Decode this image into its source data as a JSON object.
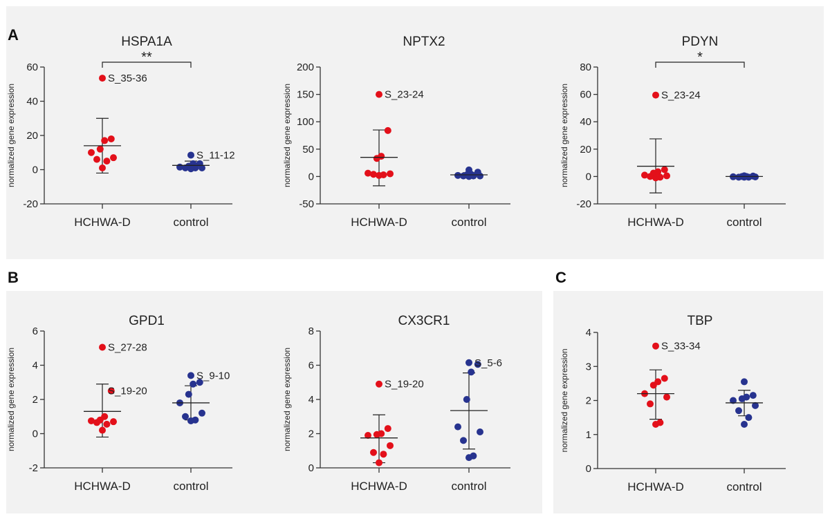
{
  "figure": {
    "panel_labels": [
      "A",
      "B",
      "C"
    ],
    "colors": {
      "hchwa": "#e3101a",
      "control": "#27338f",
      "axis": "#333333",
      "panel_bg": "#f2f2f2"
    }
  },
  "chart_data": [
    {
      "id": "hspa1a",
      "type": "scatter",
      "title": "HSPA1A",
      "panel": "A",
      "ylabel": "normalized gene expression",
      "ylim": [
        -20,
        60
      ],
      "yticks": [
        -20,
        0,
        20,
        40,
        60
      ],
      "categories": [
        "HCHWA-D",
        "control"
      ],
      "series": [
        {
          "name": "HCHWA-D",
          "values": [
            53.5,
            18,
            17,
            12,
            10,
            7,
            6,
            5,
            1
          ],
          "mean": 14,
          "sd_upper": 30,
          "sd_lower": -2
        },
        {
          "name": "control",
          "values": [
            8.5,
            3.5,
            3.5,
            2,
            1.5,
            1,
            1,
            1,
            0.5
          ],
          "mean": 2.5,
          "sd_upper": 5,
          "sd_lower": 0
        }
      ],
      "significance": "**",
      "annotations": [
        {
          "text": "S_35-36",
          "series": 0,
          "point": 0
        },
        {
          "text": "S_11-12",
          "series": 1,
          "point": 0
        }
      ]
    },
    {
      "id": "nptx2",
      "type": "scatter",
      "title": "NPTX2",
      "panel": "A",
      "ylabel": "normalized gene expression",
      "ylim": [
        -50,
        200
      ],
      "yticks": [
        -50,
        0,
        50,
        100,
        150,
        200
      ],
      "categories": [
        "HCHWA-D",
        "control"
      ],
      "series": [
        {
          "name": "HCHWA-D",
          "values": [
            150,
            84,
            37,
            33,
            6,
            5,
            4,
            3,
            2
          ],
          "mean": 35,
          "sd_upper": 85,
          "sd_lower": -17
        },
        {
          "name": "control",
          "values": [
            12,
            8,
            4,
            3,
            2,
            1,
            1,
            1,
            0
          ],
          "mean": 3,
          "sd_upper": 7,
          "sd_lower": -1
        }
      ],
      "significance": "",
      "annotations": [
        {
          "text": "S_23-24",
          "series": 0,
          "point": 0
        }
      ]
    },
    {
      "id": "pdyn",
      "type": "scatter",
      "title": "PDYN",
      "panel": "A",
      "ylabel": "normalized gene expression",
      "ylim": [
        -20,
        80
      ],
      "yticks": [
        -20,
        0,
        20,
        40,
        60,
        80
      ],
      "categories": [
        "HCHWA-D",
        "control"
      ],
      "series": [
        {
          "name": "HCHWA-D",
          "values": [
            59.5,
            5,
            3.5,
            2.5,
            1,
            0.5,
            0,
            -0.5,
            -1
          ],
          "mean": 7.5,
          "sd_upper": 27.5,
          "sd_lower": -12
        },
        {
          "name": "control",
          "values": [
            0.5,
            0.3,
            0,
            0,
            -0.2,
            -0.3,
            -0.5,
            -0.5,
            -0.5
          ],
          "mean": 0,
          "sd_upper": 0.5,
          "sd_lower": -0.5
        }
      ],
      "significance": "*",
      "annotations": [
        {
          "text": "S_23-24",
          "series": 0,
          "point": 0
        }
      ]
    },
    {
      "id": "gpd1",
      "type": "scatter",
      "title": "GPD1",
      "panel": "B",
      "ylabel": "normalized gene expression",
      "ylim": [
        -2,
        6
      ],
      "yticks": [
        -2,
        0,
        2,
        4,
        6
      ],
      "categories": [
        "HCHWA-D",
        "control"
      ],
      "series": [
        {
          "name": "HCHWA-D",
          "values": [
            5.05,
            2.5,
            1,
            0.8,
            0.75,
            0.7,
            0.65,
            0.55,
            0.2
          ],
          "mean": 1.3,
          "sd_upper": 2.9,
          "sd_lower": -0.2
        },
        {
          "name": "control",
          "values": [
            3.4,
            3,
            2.9,
            2.3,
            1.8,
            1.2,
            1,
            0.8,
            0.75
          ],
          "mean": 1.8,
          "sd_upper": 2.8,
          "sd_lower": 0.8
        }
      ],
      "significance": "",
      "annotations": [
        {
          "text": "S_27-28",
          "series": 0,
          "point": 0
        },
        {
          "text": "S_19-20",
          "series": 0,
          "point": 1
        },
        {
          "text": "S_9-10",
          "series": 1,
          "point": 0
        }
      ]
    },
    {
      "id": "cx3cr1",
      "type": "scatter",
      "title": "CX3CR1",
      "panel": "B",
      "ylabel": "normalized gene expression",
      "ylim": [
        0,
        8
      ],
      "yticks": [
        0,
        2,
        4,
        6,
        8
      ],
      "categories": [
        "HCHWA-D",
        "control"
      ],
      "series": [
        {
          "name": "HCHWA-D",
          "values": [
            4.9,
            2.3,
            2,
            1.95,
            1.9,
            1.3,
            0.9,
            0.8,
            0.3
          ],
          "mean": 1.75,
          "sd_upper": 3.1,
          "sd_lower": 0.3
        },
        {
          "name": "control",
          "values": [
            6.15,
            6.05,
            5.6,
            4,
            2.4,
            2.1,
            1.6,
            0.7,
            0.6
          ],
          "mean": 3.35,
          "sd_upper": 5.55,
          "sd_lower": 1.1
        }
      ],
      "significance": "",
      "annotations": [
        {
          "text": "S_19-20",
          "series": 0,
          "point": 0
        },
        {
          "text": "S_5-6",
          "series": 1,
          "point": 0
        }
      ]
    },
    {
      "id": "tbp",
      "type": "scatter",
      "title": "TBP",
      "panel": "C",
      "ylabel": "normalized gene expression",
      "ylim": [
        0,
        4
      ],
      "yticks": [
        0,
        1,
        2,
        3,
        4
      ],
      "categories": [
        "HCHWA-D",
        "control"
      ],
      "series": [
        {
          "name": "HCHWA-D",
          "values": [
            3.6,
            2.65,
            2.55,
            2.45,
            2.2,
            2.1,
            1.9,
            1.35,
            1.3
          ],
          "mean": 2.2,
          "sd_upper": 2.9,
          "sd_lower": 1.45
        },
        {
          "name": "control",
          "values": [
            2.55,
            2.15,
            2.1,
            2.05,
            2,
            1.85,
            1.7,
            1.5,
            1.3
          ],
          "mean": 1.93,
          "sd_upper": 2.3,
          "sd_lower": 1.55
        }
      ],
      "significance": "",
      "annotations": [
        {
          "text": "S_33-34",
          "series": 0,
          "point": 0
        }
      ]
    }
  ]
}
